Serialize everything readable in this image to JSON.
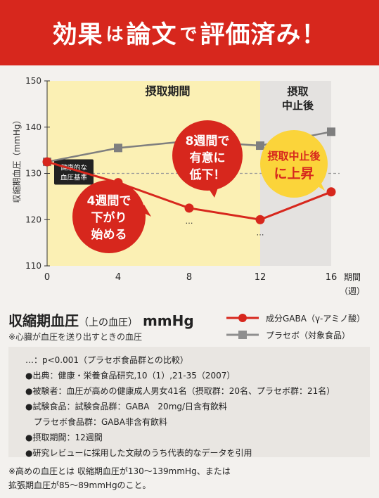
{
  "banner": {
    "part1": "効果",
    "part2": "は",
    "part3": "論文",
    "part4": "で",
    "part5": "評価済み！"
  },
  "chart_data": {
    "type": "line",
    "ylabel": "収縮期血圧（mmHg）",
    "xlabel": "期間（週）",
    "x": [
      0,
      4,
      8,
      12,
      16
    ],
    "x_ticks": [
      "0",
      "4",
      "8",
      "12",
      "16"
    ],
    "y_ticks": [
      "110",
      "120",
      "130",
      "140",
      "150"
    ],
    "ylim": [
      110,
      150
    ],
    "xlim": [
      0,
      16
    ],
    "series": [
      {
        "name": "成分GABA（γ-アミノ酸）",
        "color": "#d7271d",
        "marker": "circle",
        "values": [
          132.5,
          128,
          122.5,
          120,
          126
        ]
      },
      {
        "name": "プラセボ（対象食品）",
        "color": "#7f7f7f",
        "marker": "square",
        "values": [
          132.5,
          135.5,
          137,
          136,
          139
        ]
      }
    ],
    "reference_line": {
      "value": 130,
      "label_line1": "健康的な",
      "label_line2": "血圧基準"
    },
    "regions": [
      {
        "label": "摂取期間",
        "from": 0,
        "to": 12,
        "color": "#fbf0b4"
      },
      {
        "label_line1": "摂取",
        "label_line2": "中止後",
        "from": 12,
        "to": 16,
        "color": "#e4e2e0"
      }
    ],
    "significance_marks": [
      "…",
      "…",
      "…"
    ],
    "bubbles": [
      {
        "line1": "4週間で",
        "line2": "下がり",
        "line3": "始める"
      },
      {
        "line1": "8週間で",
        "line2": "有意に",
        "line3": "低下！"
      },
      {
        "line1": "摂取中止後",
        "line2": "に上昇"
      }
    ]
  },
  "legend": {
    "title_main": "収縮期血圧",
    "title_sub": "（上の血圧）",
    "title_unit": "mmHg",
    "note": "※心臓が血圧を送り出すときの血圧",
    "items": [
      {
        "label": "成分GABA（γ-アミノ酸）"
      },
      {
        "label": "プラセボ（対象食品）"
      }
    ]
  },
  "notes": [
    "…：p<0.001（プラセボ食品群との比較）",
    "●出典：健康・栄養食品研究,10（1）,21-35（2007）",
    "●被験者：血圧が高めの健康成人男女41名（摂取群：20名、プラセボ群：21名）",
    "●試験食品：試験食品群：GABA　20mg/日含有飲料",
    "　プラセボ食品群：GABA非含有飲料",
    "●摂取期間：12週間",
    "●研究レビューに採用した文献のうち代表的なデータを引用"
  ],
  "footer": [
    "※高めの血圧とは 収縮期血圧が130～139mmHg、または",
    "拡張期血圧が85～89mmHgのこと。"
  ]
}
